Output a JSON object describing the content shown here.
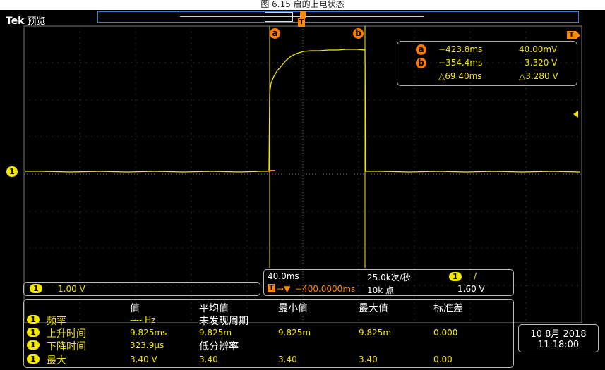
{
  "caption": "图 6.15 启的上电状态",
  "header": {
    "brand": "Tek",
    "mode": "预览"
  },
  "screen": {
    "cursor_a_label": "a",
    "cursor_b_label": "b",
    "trigger_tag": "T",
    "ch1_marker": "1"
  },
  "cursor_readout": {
    "a": {
      "time": "−423.8ms",
      "value": "40.00mV"
    },
    "b": {
      "time": "−354.4ms",
      "value": "3.320 V"
    },
    "delta": {
      "time": "△69.40ms",
      "value": "△3.280 V"
    }
  },
  "channel_scale": {
    "ch": "1",
    "volts": "1.00 V"
  },
  "timebase": {
    "scale": "40.0ms",
    "sample_rate": "25.0k次/秒",
    "trigger_ch": "1",
    "trigger_slope": "/",
    "trigger_pos": "−400.0000ms",
    "record_length": "10k 点",
    "trigger_level": "1.60 V"
  },
  "measurements": {
    "headers": [
      "值",
      "平均值",
      "最小值",
      "最大值",
      "标准差"
    ],
    "rows": [
      {
        "ch": "1",
        "name": "频率",
        "value": "---- Hz",
        "mean": "未发现周期",
        "min": "",
        "max": "",
        "std": ""
      },
      {
        "ch": "1",
        "name": "上升时间",
        "value": "9.825ms",
        "mean": "9.825m",
        "min": "9.825m",
        "max": "9.825m",
        "std": "0.000"
      },
      {
        "ch": "1",
        "name": "下降时间",
        "value": "323.9μs",
        "mean": "低分辨率",
        "min": "",
        "max": "",
        "std": ""
      },
      {
        "ch": "1",
        "name": "最大",
        "value": "3.40 V",
        "mean": "3.40",
        "min": "3.40",
        "max": "3.40",
        "std": "0.00"
      }
    ]
  },
  "datetime": {
    "date": "10 8月 2018",
    "time": "11:18:00"
  },
  "colors": {
    "trace": "#f5e800",
    "cursor_badge": "#ff7a00",
    "record_bar": "#3a7dd8"
  }
}
